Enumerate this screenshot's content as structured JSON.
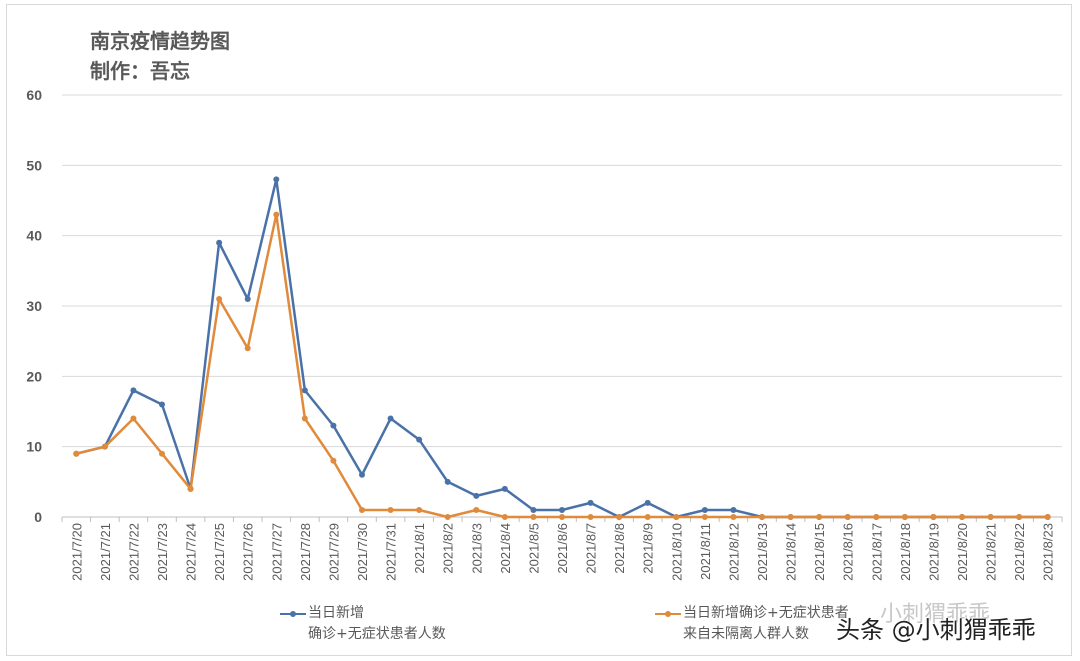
{
  "chart_data": {
    "type": "line",
    "title": "南京疫情趋势图",
    "subtitle": "制作：吾忘",
    "xlabel": "",
    "ylabel": "",
    "ylim": [
      0,
      60
    ],
    "yticks": [
      0,
      10,
      20,
      30,
      40,
      50,
      60
    ],
    "grid": true,
    "legend_position": "bottom",
    "categories": [
      "2021/7/20",
      "2021/7/21",
      "2021/7/22",
      "2021/7/23",
      "2021/7/24",
      "2021/7/25",
      "2021/7/26",
      "2021/7/27",
      "2021/7/28",
      "2021/7/29",
      "2021/7/30",
      "2021/7/31",
      "2021/8/1",
      "2021/8/2",
      "2021/8/3",
      "2021/8/4",
      "2021/8/5",
      "2021/8/6",
      "2021/8/7",
      "2021/8/8",
      "2021/8/9",
      "2021/8/10",
      "2021/8/11",
      "2021/8/12",
      "2021/8/13",
      "2021/8/14",
      "2021/8/15",
      "2021/8/16",
      "2021/8/17",
      "2021/8/18",
      "2021/8/19",
      "2021/8/20",
      "2021/8/21",
      "2021/8/22",
      "2021/8/23"
    ],
    "series": [
      {
        "name": "当日新增确诊+无症状患者人数",
        "legend_line1": "当日新增",
        "legend_line2": "确诊+无症状患者人数",
        "color": "#4a72a8",
        "values": [
          9,
          10,
          18,
          16,
          4,
          39,
          31,
          48,
          18,
          13,
          6,
          14,
          11,
          5,
          3,
          4,
          1,
          1,
          2,
          0,
          2,
          0,
          1,
          1,
          0,
          0,
          0,
          0,
          0,
          0,
          0,
          0,
          0,
          0,
          0
        ]
      },
      {
        "name": "当日新增确诊+无症状患者来自未隔离人群人数",
        "legend_line1": "当日新增确诊+无症状患者",
        "legend_line2": "来自未隔离人群人数",
        "color": "#e08a3c",
        "values": [
          9,
          10,
          14,
          9,
          4,
          31,
          24,
          43,
          14,
          8,
          1,
          1,
          1,
          0,
          1,
          0,
          0,
          0,
          0,
          0,
          0,
          0,
          0,
          0,
          0,
          0,
          0,
          0,
          0,
          0,
          0,
          0,
          0,
          0,
          0
        ]
      }
    ]
  },
  "watermark": "头条 @小刺猬乖乖",
  "watermark_faint": "小刺猬乖乖"
}
